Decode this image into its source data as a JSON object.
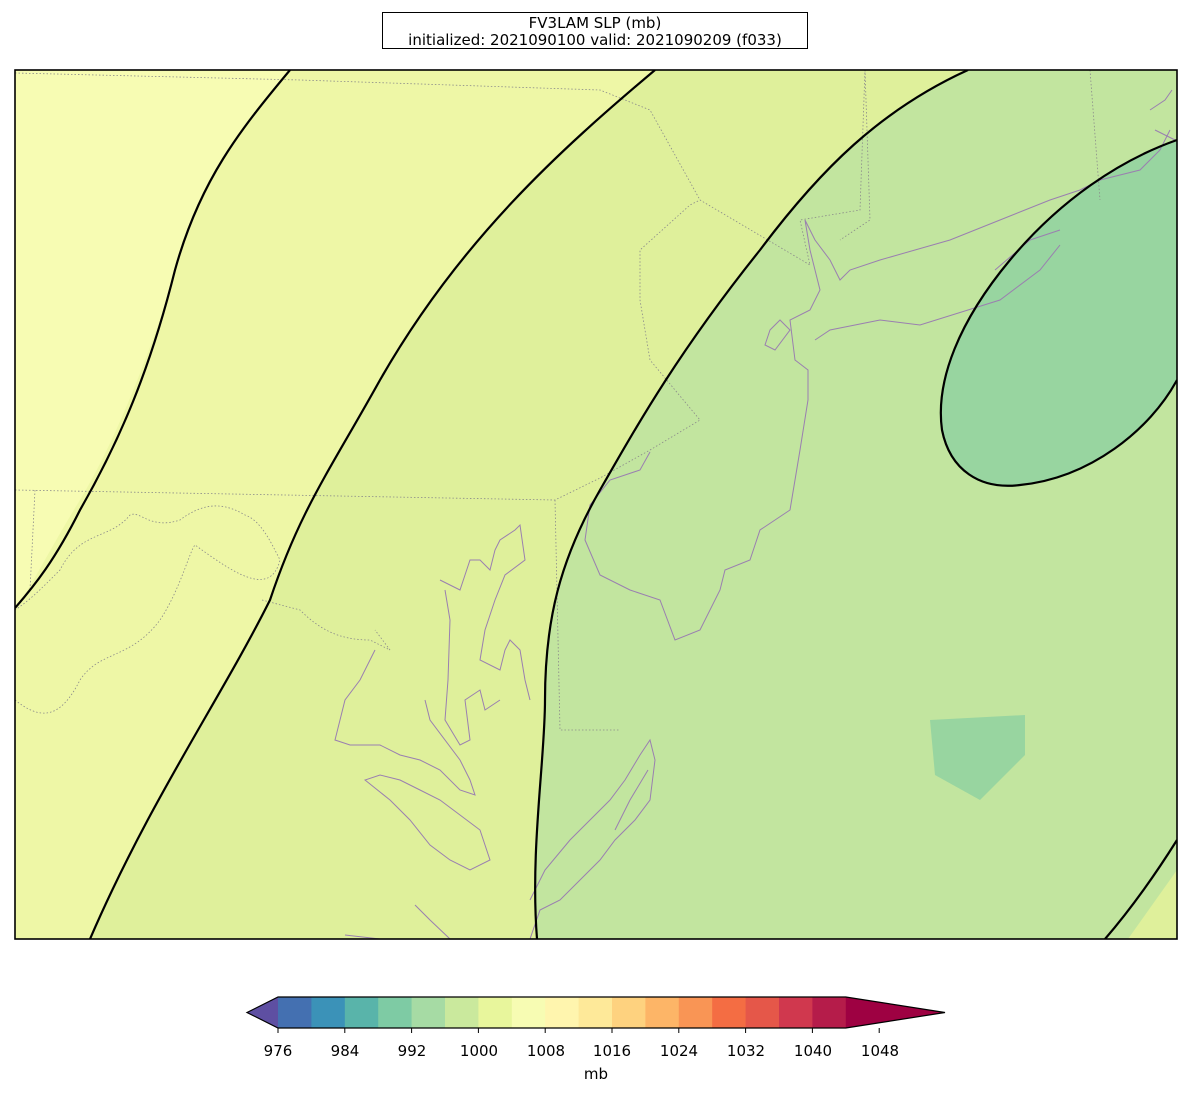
{
  "title": {
    "line1": "FV3LAM SLP (mb)",
    "line2": "initialized: 2021090100 valid: 2021090209 (f033)"
  },
  "colorbar": {
    "unit": "mb",
    "ticks": [
      "976",
      "984",
      "992",
      "1000",
      "1008",
      "1016",
      "1024",
      "1032",
      "1040",
      "1048"
    ],
    "colors": [
      "#5e4fa2",
      "#4470b1",
      "#3b92b8",
      "#59b4aa",
      "#7ecba4",
      "#a6dba4",
      "#cae99d",
      "#e8f69c",
      "#f7fcb3",
      "#fff5ae",
      "#fee999",
      "#fed27f",
      "#fdb567",
      "#f99555",
      "#f46d43",
      "#e55749",
      "#d0384e",
      "#b51c4a",
      "#9e0142"
    ]
  },
  "map": {
    "fill_levels": [
      "#f7fcb3",
      "#eef7a6",
      "#dff09b",
      "#c2e59f",
      "#98d5a0"
    ],
    "contour_color": "#000000",
    "coastline_color": "#9a7fb0",
    "border_color": "#8a8a8a"
  }
}
